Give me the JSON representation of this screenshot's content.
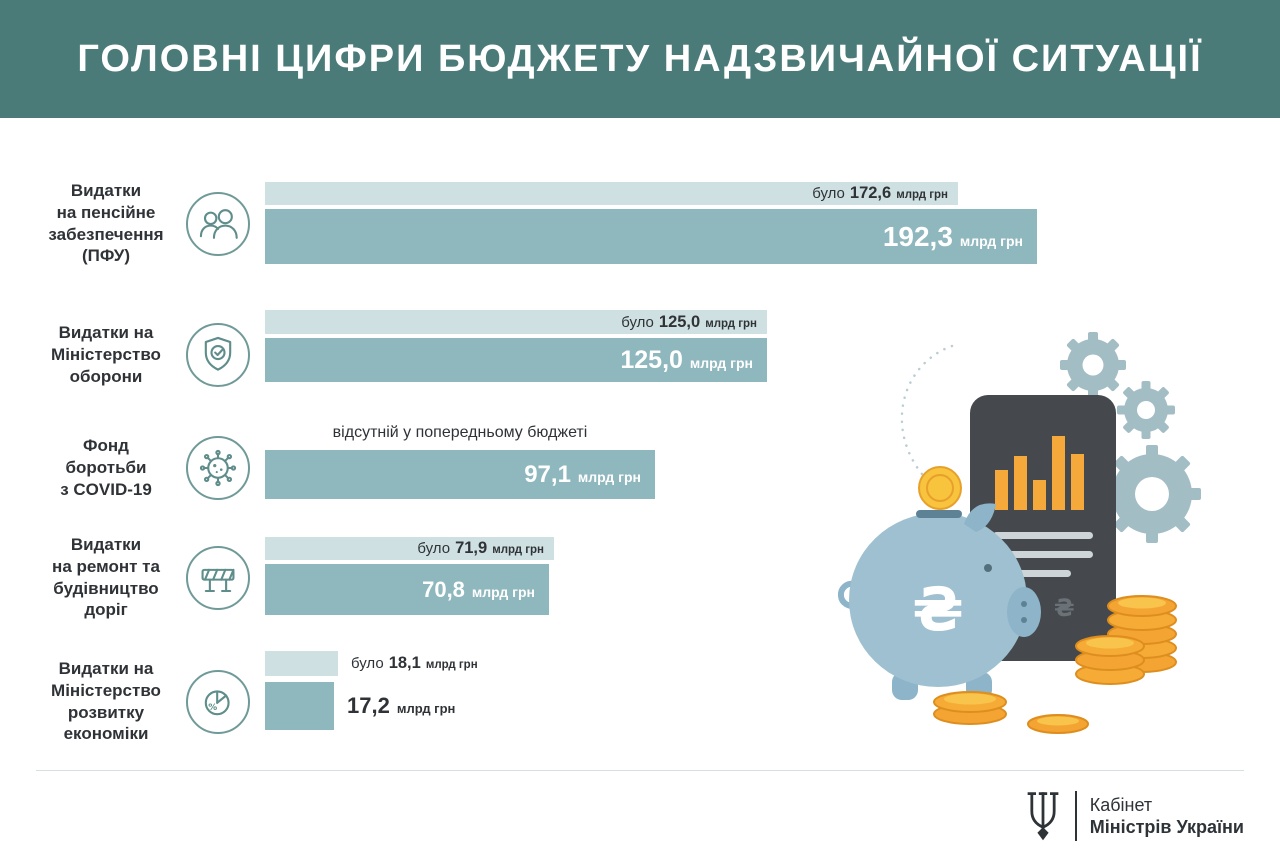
{
  "title": "ГОЛОВНІ ЦИФРИ БЮДЖЕТУ НАДЗВИЧАЙНОЇ СИТУАЦІЇ",
  "colors": {
    "header-bg": "#4a7b79",
    "bar-light": "#cfe0e2",
    "bar-dark": "#8fb7be",
    "text-dark": "#2f3337",
    "icon-stroke": "#5f8d8b",
    "accent-orange": "#f4a432",
    "piggy-blue": "#9fc0d0",
    "gear-gray": "#a3bdc4"
  },
  "chart_data": {
    "type": "bar",
    "title": "ГОЛОВНІ ЦИФРИ БЮДЖЕТУ НАДЗВИЧАЙНОЇ СИТУАЦІЇ",
    "unit": "млрд грн",
    "was_prefix": "було",
    "max_value": 192.3,
    "rows": [
      {
        "label": "Видатки\nна пенсійне\nзабезпечення\n(ПФУ)",
        "icon": "pensioners-icon",
        "was_value": 172.6,
        "was_text": "172,6",
        "now_value": 192.3,
        "now_text": "192,3"
      },
      {
        "label": "Видатки на\nМіністерство\nоборони",
        "icon": "shield-check-icon",
        "was_value": 125.0,
        "was_text": "125,0",
        "now_value": 125.0,
        "now_text": "125,0"
      },
      {
        "label": "Фонд\nборотьби\nз COVID-19",
        "icon": "virus-icon",
        "was_note": "відсутній у попередньому бюджеті",
        "now_value": 97.1,
        "now_text": "97,1"
      },
      {
        "label": "Видатки\nна ремонт та\nбудівництво\nдоріг",
        "icon": "road-barrier-icon",
        "was_value": 71.9,
        "was_text": "71,9",
        "now_value": 70.8,
        "now_text": "70,8"
      },
      {
        "label": "Видатки на\nМіністерство\nрозвитку\nекономіки",
        "icon": "pie-percent-icon",
        "was_value": 18.1,
        "was_text": "18,1",
        "now_value": 17.2,
        "now_text": "17,2"
      }
    ]
  },
  "illustration": {
    "currency_symbol": "₴",
    "elements": [
      "piggy-bank",
      "coin-stacks",
      "smartphone-bar-chart",
      "gears",
      "dotted-string"
    ]
  },
  "footer": {
    "org_line1": "Кабінет",
    "org_line2": "Міністрів України",
    "logo": "tryzub-icon"
  }
}
